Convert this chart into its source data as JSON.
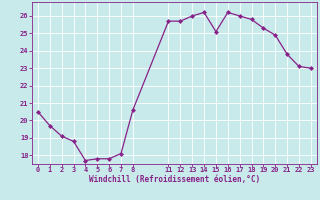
{
  "x": [
    0,
    1,
    2,
    3,
    4,
    5,
    6,
    7,
    8,
    11,
    12,
    13,
    14,
    15,
    16,
    17,
    18,
    19,
    20,
    21,
    22,
    23
  ],
  "y": [
    20.5,
    19.7,
    19.1,
    18.8,
    17.7,
    17.8,
    17.8,
    18.1,
    20.6,
    25.7,
    25.7,
    26.0,
    26.2,
    25.1,
    26.2,
    26.0,
    25.8,
    25.3,
    24.9,
    23.8,
    23.1,
    23.0
  ],
  "line_color": "#882288",
  "marker": "D",
  "marker_size": 2.0,
  "bg_color": "#c8eaea",
  "grid_color": "#aadddd",
  "ylabel_ticks": [
    18,
    19,
    20,
    21,
    22,
    23,
    24,
    25,
    26
  ],
  "xlabel_ticks": [
    0,
    1,
    2,
    3,
    4,
    5,
    6,
    7,
    8,
    11,
    12,
    13,
    14,
    15,
    16,
    17,
    18,
    19,
    20,
    21,
    22,
    23
  ],
  "xlabel": "Windchill (Refroidissement éolien,°C)",
  "ylim": [
    17.5,
    26.8
  ],
  "xlim": [
    -0.5,
    23.5
  ],
  "axis_color": "#882288",
  "tick_color": "#882288",
  "tick_fontsize": 5.0,
  "xlabel_fontsize": 5.5,
  "linewidth": 0.9
}
